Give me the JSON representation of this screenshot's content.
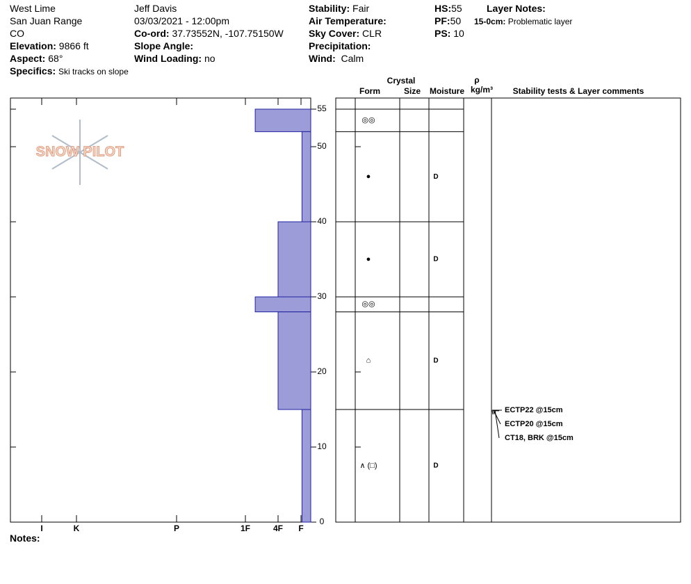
{
  "header": {
    "location": "West Lime",
    "range": "San Juan Range",
    "state": "CO",
    "elevation": {
      "label": "Elevation:",
      "value": "9866 ft"
    },
    "aspect": {
      "label": "Aspect:",
      "value": "68°"
    },
    "specifics": {
      "label": "Specifics:",
      "value": "Ski tracks on slope"
    },
    "observer": "Jeff Davis",
    "datetime": "03/03/2021 - 12:00pm",
    "coord": {
      "label": "Co-ord:",
      "value": "37.73552N, -107.75150W"
    },
    "slope_angle": {
      "label": "Slope Angle:"
    },
    "wind_loading": {
      "label": "Wind Loading:",
      "value": "no"
    },
    "stability": {
      "label": "Stability:",
      "value": "Fair"
    },
    "air_temperature": {
      "label": "Air Temperature:"
    },
    "sky_cover": {
      "label": "Sky Cover:",
      "value": "CLR"
    },
    "precipitation": {
      "label": "Precipitation:"
    },
    "wind": {
      "label": "Wind:",
      "value": "Calm"
    },
    "hs": {
      "label": "HS:",
      "value": "55"
    },
    "pf": {
      "label": "PF:",
      "value": "50"
    },
    "ps": {
      "label": "PS:",
      "value": "10"
    },
    "layer_notes": {
      "label": "Layer Notes:",
      "range": "15-0cm:",
      "text": "Problematic layer"
    }
  },
  "logo": "SNOW PILOT",
  "notes_label": "Notes:",
  "chart_data": {
    "type": "snow-profile",
    "ylim": [
      0,
      55
    ],
    "yticks": [
      0,
      10,
      20,
      30,
      40,
      50,
      55
    ],
    "xlim": [
      7,
      0
    ],
    "xticks": [
      {
        "value": 6,
        "label": "I"
      },
      {
        "value": 5,
        "label": "K"
      },
      {
        "value": 4,
        "label": "P"
      },
      {
        "value": 3,
        "label": "1F"
      },
      {
        "value": 2,
        "label": "4F"
      },
      {
        "value": 1,
        "label": "F"
      }
    ],
    "color": "#9c9cd8",
    "columns": {
      "crystal": "Crystal",
      "form": "Form",
      "size": "Size",
      "moisture": "Moisture",
      "density": "ρ",
      "density_unit": "kg/m³",
      "comments": "Stability tests & Layer comments"
    },
    "layers": [
      {
        "top": 55,
        "bottom": 52,
        "hardness": 2.7,
        "form": "◎◎"
      },
      {
        "top": 52,
        "bottom": 40,
        "hardness": 0.9,
        "form": "●",
        "moisture": "D"
      },
      {
        "top": 40,
        "bottom": 30,
        "hardness": 2,
        "form": "●",
        "moisture": "D"
      },
      {
        "top": 30,
        "bottom": 28,
        "hardness": 2.7,
        "form": "◎◎"
      },
      {
        "top": 28,
        "bottom": 15,
        "hardness": 2,
        "form": "⌂",
        "moisture": "D"
      },
      {
        "top": 15,
        "bottom": 0,
        "hardness": 0.9,
        "form": "∧ (□)",
        "moisture": "D"
      }
    ],
    "tests": [
      {
        "label": "ECTP22 @15cm",
        "depth": 15
      },
      {
        "label": "ECTP20 @15cm",
        "depth": 15
      },
      {
        "label": "CT18, BRK @15cm",
        "depth": 15
      }
    ]
  }
}
